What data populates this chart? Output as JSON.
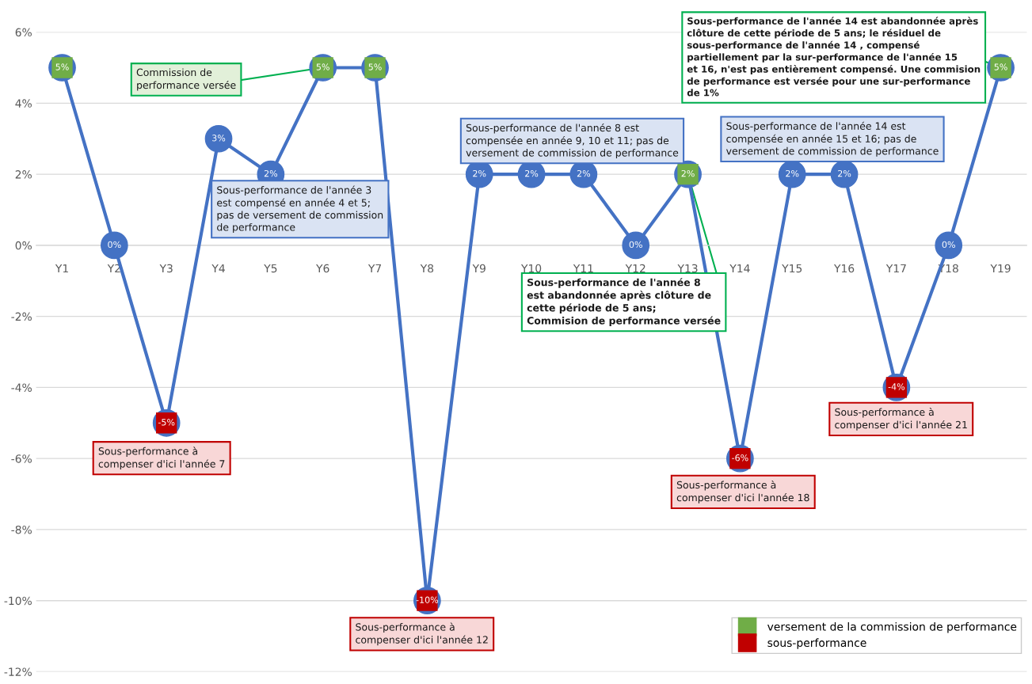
{
  "chart_data": {
    "type": "line",
    "categories": [
      "Y1",
      "Y2",
      "Y3",
      "Y4",
      "Y5",
      "Y6",
      "Y7",
      "Y8",
      "Y9",
      "Y10",
      "Y11",
      "Y12",
      "Y13",
      "Y14",
      "Y15",
      "Y16",
      "Y17",
      "Y18",
      "Y19"
    ],
    "series": [
      {
        "color": "#4472c4",
        "marker": "circle",
        "values": [
          5,
          0,
          -5,
          3,
          2,
          5,
          5,
          -10,
          2,
          2,
          2,
          0,
          2,
          -6,
          2,
          2,
          -4,
          0,
          5
        ],
        "value_labels": [
          "5%",
          "0%",
          "-5%",
          "3%",
          "2%",
          "5%",
          "5%",
          "-10%",
          "2%",
          "2%",
          "2%",
          "0%",
          "2%",
          "-6%",
          "2%",
          "2%",
          "-4%",
          "0%",
          "5%"
        ]
      },
      {
        "type": "scatter",
        "name": "versement de la commission de performance",
        "color": "#70ad47",
        "marker": "square",
        "values": [
          5,
          null,
          null,
          null,
          null,
          5,
          5,
          null,
          null,
          null,
          null,
          null,
          2,
          null,
          null,
          null,
          null,
          null,
          5
        ]
      },
      {
        "type": "scatter",
        "name": "sous-performance",
        "color": "#c00000",
        "marker": "square",
        "values": [
          null,
          null,
          -5,
          null,
          null,
          null,
          null,
          -10,
          null,
          null,
          null,
          null,
          null,
          -6,
          null,
          null,
          -4,
          null,
          null
        ]
      }
    ],
    "ylim": [
      -12,
      6
    ],
    "yticks": [
      {
        "value": -12,
        "label": "-12%"
      },
      {
        "value": -10,
        "label": "-10%"
      },
      {
        "value": -8,
        "label": "-8%"
      },
      {
        "value": -6,
        "label": "-6%"
      },
      {
        "value": -4,
        "label": "-4%"
      },
      {
        "value": -2,
        "label": "-2%"
      },
      {
        "value": 0,
        "label": "0%"
      },
      {
        "value": 2,
        "label": "2%"
      },
      {
        "value": 4,
        "label": "4%"
      },
      {
        "value": 6,
        "label": "6%"
      }
    ],
    "grid": "y",
    "legend": "bottom right",
    "annotations": [
      {
        "text": "Commission de performance versée",
        "x": "Y6",
        "y": 5
      },
      {
        "text": "Sous-performance de l'année 3 est compensé en année 4 et 5; pas de versement de commission de performance",
        "x": "Y5",
        "y": 2
      },
      {
        "text": "Sous-performance à compenser d'ici l'année 7",
        "x": "Y3",
        "y": -5
      },
      {
        "text": "Sous-performance à compenser d'ici l'année 12",
        "x": "Y8",
        "y": -10
      },
      {
        "text": "Sous-performance de l'année 8 est compensée en année 9, 10 et 11; pas de versement de commission de performance",
        "x": "Y10",
        "y": 2
      },
      {
        "text": "Sous-performance de l'année 8 est abandonnée après clôture de cette période de 5 ans; Commision de performance versée",
        "x": "Y13",
        "y": 2
      },
      {
        "text": "Sous-performance à compenser d'ici l'année 18",
        "x": "Y14",
        "y": -6
      },
      {
        "text": "Sous-performance de l'année 14 est compensée en année 15 et 16; pas de versement de commission de performance",
        "x": "Y15",
        "y": 2
      },
      {
        "text": "Sous-performance de l'année 14 est abandonnée après clôture de cette période de 5 ans; le résiduel de sous-performance de l'année 14 , compensé partiellement par la sur-performance de l'année 15 et 16, n'est pas entièrement compensé. Une commision de performance est versée pour une sur-performance de 1%",
        "x": "Y19",
        "y": 5
      },
      {
        "text": "Sous-performance à compenser d'ici l'année 21",
        "x": "Y17",
        "y": -4
      }
    ]
  }
}
